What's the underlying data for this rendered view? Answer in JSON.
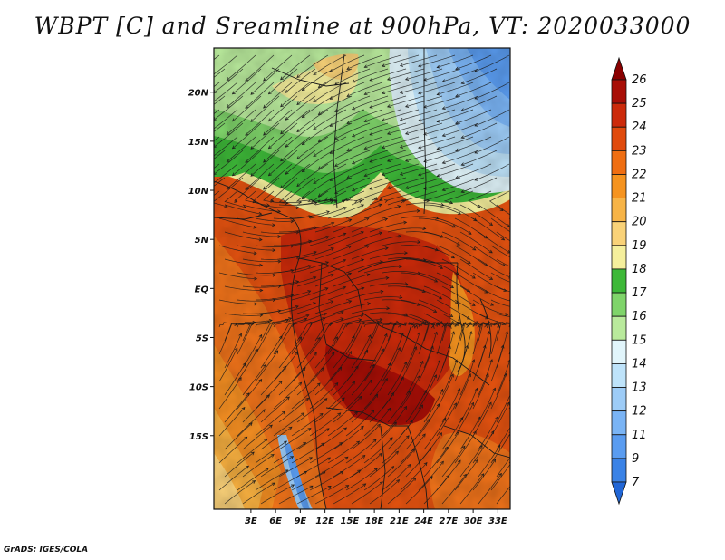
{
  "title": "WBPT [C] and Sreamline at 900hPa, VT: 2020033000",
  "credit": "GrADS: IGES/COLA",
  "map": {
    "lon_range": [
      -1.5,
      34.5
    ],
    "lat_range": [
      -22.5,
      24.5
    ],
    "lat_ticks": [
      {
        "value": 20,
        "label": "20N"
      },
      {
        "value": 15,
        "label": "15N"
      },
      {
        "value": 10,
        "label": "10N"
      },
      {
        "value": 5,
        "label": "5N"
      },
      {
        "value": 0,
        "label": "EQ"
      },
      {
        "value": -5,
        "label": "5S"
      },
      {
        "value": -10,
        "label": "10S"
      },
      {
        "value": -15,
        "label": "15S"
      }
    ],
    "lon_ticks": [
      {
        "value": 3,
        "label": "3E"
      },
      {
        "value": 6,
        "label": "6E"
      },
      {
        "value": 9,
        "label": "9E"
      },
      {
        "value": 12,
        "label": "12E"
      },
      {
        "value": 15,
        "label": "15E"
      },
      {
        "value": 18,
        "label": "18E"
      },
      {
        "value": 21,
        "label": "21E"
      },
      {
        "value": 24,
        "label": "24E"
      },
      {
        "value": 27,
        "label": "27E"
      },
      {
        "value": 30,
        "label": "30E"
      },
      {
        "value": 33,
        "label": "33E"
      }
    ]
  },
  "colorbar": {
    "levels": [
      "7",
      "9",
      "11",
      "12",
      "13",
      "14",
      "15",
      "16",
      "17",
      "18",
      "19",
      "20",
      "21",
      "22",
      "23",
      "24",
      "25",
      "26"
    ],
    "colors": [
      "#2166d6",
      "#3a82e6",
      "#5a9cf0",
      "#7ab4f5",
      "#9dccf7",
      "#bee3fa",
      "#e1f5fb",
      "#b9ea9c",
      "#7fd46a",
      "#3db838",
      "#f5ef9c",
      "#f9d278",
      "#f7b447",
      "#f5931f",
      "#ef6e12",
      "#e04a0c",
      "#cc2a0a",
      "#a80e06",
      "#8a0000"
    ]
  },
  "colors": {
    "text": "#111111",
    "streamline": "#1a1a1a",
    "border": "#1a1a1a"
  }
}
